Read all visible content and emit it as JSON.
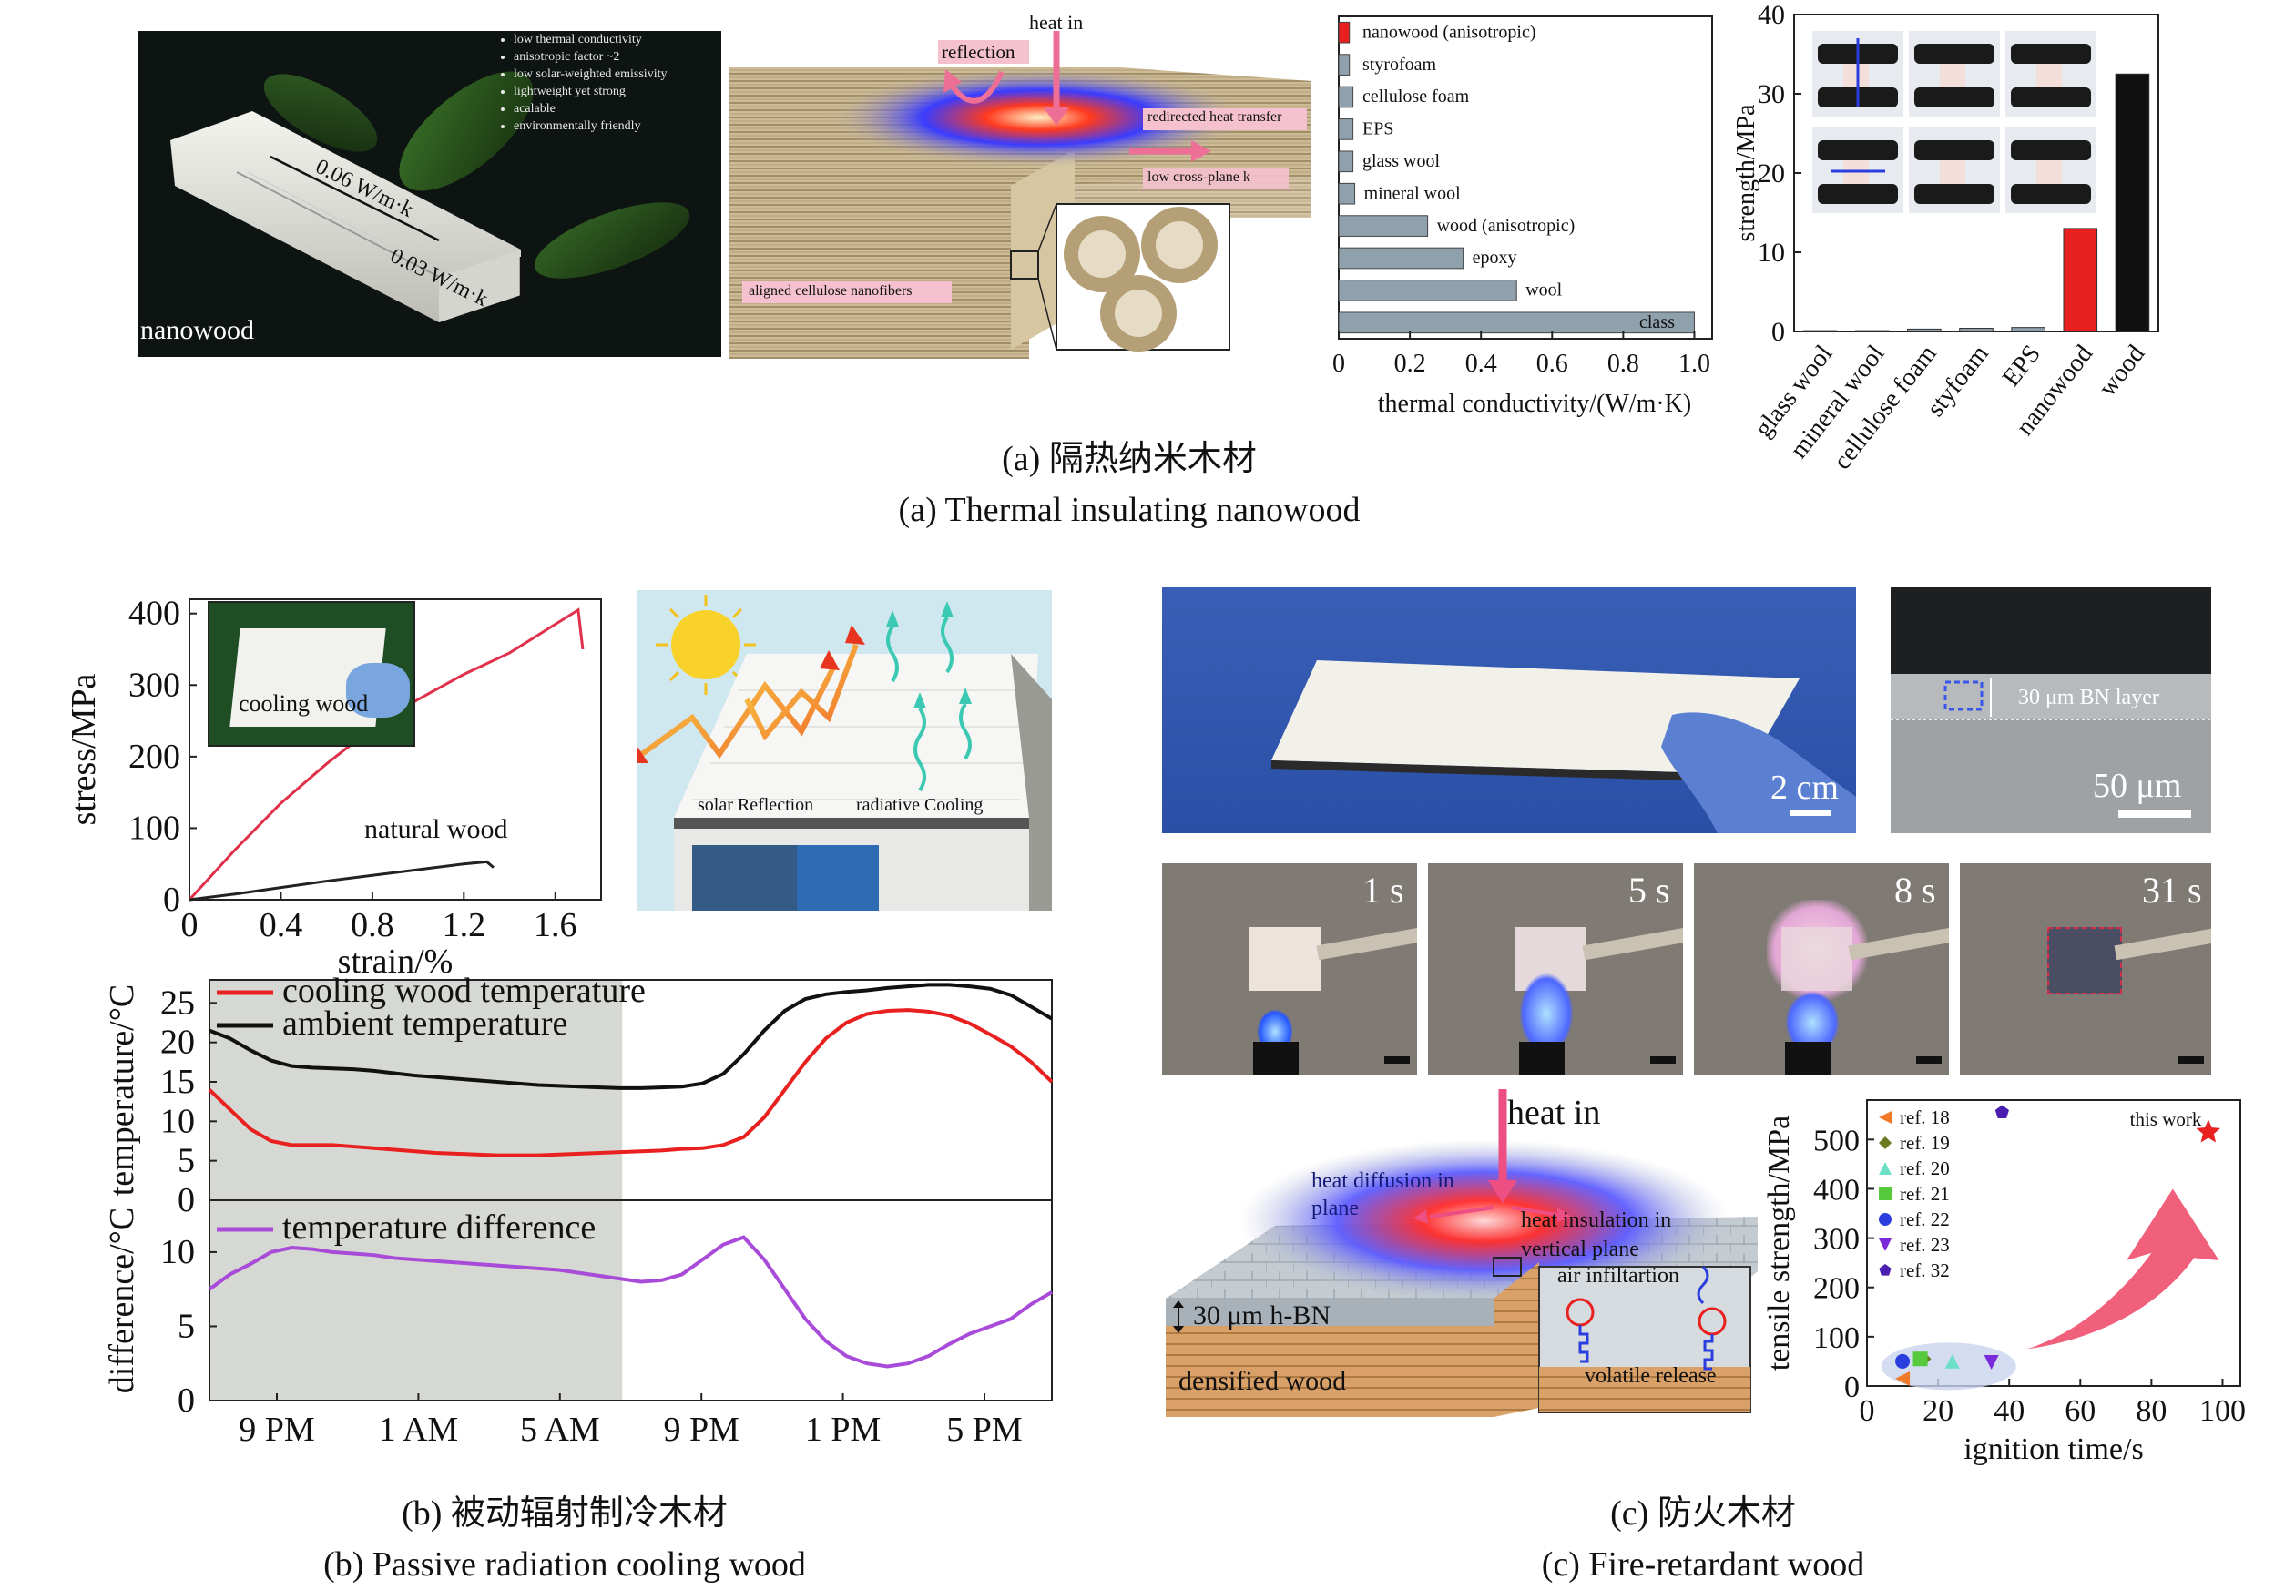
{
  "panel_a": {
    "photo": {
      "label": "nanowood",
      "bullets": [
        "low thermal conductivity",
        "anisotropic factor ~2",
        "low solar-weighted emissivity",
        "lightweight yet strong",
        "acalable",
        "environmentally friendly"
      ],
      "dim_long": "0.06 W/m·k",
      "dim_short": "0.03 W/m·k"
    },
    "schematic": {
      "heat_in": "heat in",
      "reflection": "reflection",
      "redirected": "redirected heat transfer",
      "low_k": "low cross-plane k",
      "fibers": "aligned cellulose nanofibers"
    },
    "caption_cn": "(a) 隔热纳米木材",
    "caption_en": "(a) Thermal insulating nanowood"
  },
  "chart_data": [
    {
      "id": "a_conductivity",
      "type": "bar",
      "orientation": "horizontal",
      "categories": [
        "nanowood (anisotropic)",
        "styrofoam",
        "cellulose foam",
        "EPS",
        "glass wool",
        "mineral wool",
        "wood (anisotropic)",
        "epoxy",
        "wool",
        "class"
      ],
      "values": [
        0.03,
        0.03,
        0.04,
        0.04,
        0.04,
        0.045,
        0.25,
        0.35,
        0.5,
        1.0
      ],
      "colors": [
        "#e8201f",
        "#8fa1ac",
        "#8fa1ac",
        "#8fa1ac",
        "#8fa1ac",
        "#8fa1ac",
        "#8fa1ac",
        "#8fa1ac",
        "#8fa1ac",
        "#8fa1ac"
      ],
      "xlabel": "thermal conductivity/(W/m·K)",
      "xlim": [
        0,
        1.05
      ],
      "xticks": [
        "0",
        "0.2",
        "0.4",
        "0.6",
        "0.8",
        "1.0"
      ]
    },
    {
      "id": "a_strength",
      "type": "bar",
      "categories": [
        "glass wool",
        "mineral wool",
        "cellulose foam",
        "styfoam",
        "EPS",
        "nanowood",
        "wood"
      ],
      "values": [
        0.1,
        0.1,
        0.3,
        0.4,
        0.5,
        13,
        32.5
      ],
      "colors": [
        "#8fa1ac",
        "#8fa1ac",
        "#8fa1ac",
        "#8fa1ac",
        "#8fa1ac",
        "#e8201f",
        "#111111"
      ],
      "ylabel": "strength/MPa",
      "ylim": [
        0,
        40
      ],
      "yticks": [
        "0",
        "10",
        "20",
        "30",
        "40"
      ]
    },
    {
      "id": "b_stress",
      "type": "line",
      "xlabel": "strain/%",
      "ylabel": "stress/MPa",
      "xlim": [
        0,
        1.8
      ],
      "ylim": [
        0,
        420
      ],
      "xticks": [
        "0",
        "0.4",
        "0.8",
        "1.2",
        "1.6"
      ],
      "yticks": [
        "0",
        "100",
        "200",
        "300",
        "400"
      ],
      "series": [
        {
          "name": "cooling wood",
          "color": "#e0304a",
          "x": [
            0,
            0.2,
            0.4,
            0.6,
            0.8,
            1.0,
            1.2,
            1.4,
            1.6,
            1.7,
            1.72
          ],
          "y": [
            0,
            70,
            135,
            190,
            240,
            280,
            315,
            345,
            385,
            405,
            350
          ]
        },
        {
          "name": "natural wood",
          "color": "#222222",
          "x": [
            0,
            0.2,
            0.4,
            0.6,
            0.8,
            1.0,
            1.2,
            1.3,
            1.33
          ],
          "y": [
            0,
            8,
            17,
            26,
            34,
            42,
            50,
            53,
            45
          ]
        }
      ],
      "inset_label": "cooling wood"
    },
    {
      "id": "b_temperature",
      "type": "line",
      "ylabel": "temperature/°C",
      "ylim": [
        0,
        27
      ],
      "yticks": [
        "0",
        "5",
        "10",
        "15",
        "20",
        "25"
      ],
      "series": [
        {
          "name": "cooling wood temperature",
          "color": "#e8201f",
          "values": [
            14,
            11.5,
            9,
            7.5,
            7,
            7,
            7,
            6.8,
            6.6,
            6.4,
            6.2,
            6,
            5.9,
            5.8,
            5.7,
            5.7,
            5.7,
            5.8,
            5.9,
            6,
            6.1,
            6.2,
            6.3,
            6.5,
            6.6,
            7,
            8,
            10.5,
            14,
            17.5,
            20.5,
            22.5,
            23.6,
            24,
            24.1,
            23.9,
            23.4,
            22.4,
            21,
            19.5,
            17.5,
            15
          ]
        },
        {
          "name": "ambient temperature",
          "color": "#111111",
          "values": [
            21.5,
            20.5,
            19,
            17.7,
            17,
            16.8,
            16.7,
            16.6,
            16.4,
            16.1,
            15.8,
            15.6,
            15.4,
            15.2,
            15,
            14.8,
            14.6,
            14.5,
            14.4,
            14.3,
            14.2,
            14.2,
            14.3,
            14.4,
            14.8,
            16,
            18.5,
            21.5,
            24,
            25.5,
            26.1,
            26.4,
            26.6,
            26.9,
            27.1,
            27.3,
            27.3,
            27.1,
            26.8,
            26,
            24.5,
            23
          ]
        }
      ]
    },
    {
      "id": "b_difference",
      "type": "line",
      "ylabel": "difference/°C",
      "ylim": [
        0,
        13
      ],
      "yticks": [
        "0",
        "5",
        "10"
      ],
      "xticks": [
        "9 PM",
        "1 AM",
        "5 AM",
        "9 PM",
        "1 PM",
        "5 PM"
      ],
      "series": [
        {
          "name": "temperature difference",
          "color": "#a84bd9",
          "values": [
            7.5,
            8.5,
            9.2,
            10,
            10.3,
            10.2,
            10,
            9.9,
            9.8,
            9.6,
            9.5,
            9.4,
            9.3,
            9.2,
            9.1,
            9,
            8.9,
            8.8,
            8.6,
            8.4,
            8.2,
            8,
            8.1,
            8.5,
            9.5,
            10.5,
            11,
            9.5,
            7.5,
            5.5,
            4,
            3,
            2.5,
            2.3,
            2.5,
            3,
            3.8,
            4.5,
            5,
            5.5,
            6.5,
            7.3
          ]
        }
      ]
    },
    {
      "id": "c_ignition",
      "type": "scatter",
      "xlabel": "ignition time/s",
      "ylabel": "tensile strength/MPa",
      "xlim": [
        0,
        105
      ],
      "ylim": [
        0,
        580
      ],
      "xticks": [
        "0",
        "20",
        "40",
        "60",
        "80",
        "100"
      ],
      "yticks": [
        "0",
        "100",
        "200",
        "300",
        "400",
        "500"
      ],
      "series": [
        {
          "name": "ref. 18",
          "color": "#f07a2a",
          "marker": "triangle-left",
          "x": [
            10
          ],
          "y": [
            15
          ]
        },
        {
          "name": "ref. 19",
          "color": "#6b7a1f",
          "marker": "diamond",
          "x": [
            16
          ],
          "y": [
            55
          ]
        },
        {
          "name": "ref. 20",
          "color": "#6ee0c8",
          "marker": "triangle-up",
          "x": [
            24
          ],
          "y": [
            50
          ]
        },
        {
          "name": "ref. 21",
          "color": "#56c93c",
          "marker": "square",
          "x": [
            15
          ],
          "y": [
            55
          ]
        },
        {
          "name": "ref. 22",
          "color": "#2a3ee0",
          "marker": "circle",
          "x": [
            10
          ],
          "y": [
            50
          ]
        },
        {
          "name": "ref. 23",
          "color": "#7a2ad9",
          "marker": "triangle-down",
          "x": [
            35
          ],
          "y": [
            48
          ]
        },
        {
          "name": "ref. 32",
          "color": "#4a1fb0",
          "marker": "pentagon",
          "x": [
            38
          ],
          "y": [
            555
          ]
        },
        {
          "name": "this work",
          "color": "#e8201f",
          "marker": "star",
          "x": [
            96
          ],
          "y": [
            515
          ]
        }
      ]
    }
  ],
  "panel_b": {
    "house": {
      "reflection": "solar Reflection",
      "cooling": "radiative Cooling"
    },
    "annot_natural": "natural wood",
    "caption_cn": "(b) 被动辐射制冷木材",
    "caption_en": "(b) Passive radiation cooling wood"
  },
  "panel_c": {
    "scale_2cm": "2 cm",
    "sem_layer": "30 μm BN layer",
    "sem_scale": "50 μm",
    "times": [
      "1 s",
      "5 s",
      "8 s",
      "31 s"
    ],
    "schem": {
      "heat_in": "heat in",
      "diffusion": "heat diffusion in plane",
      "insulation": "heat insulation in vertical plane",
      "air": "air infiltartion",
      "volatile": "volatile release",
      "hbn": "30 μm h-BN",
      "densified": "densified wood"
    },
    "caption_cn": "(c) 防火木材",
    "caption_en": "(c) Fire-retardant wood"
  }
}
